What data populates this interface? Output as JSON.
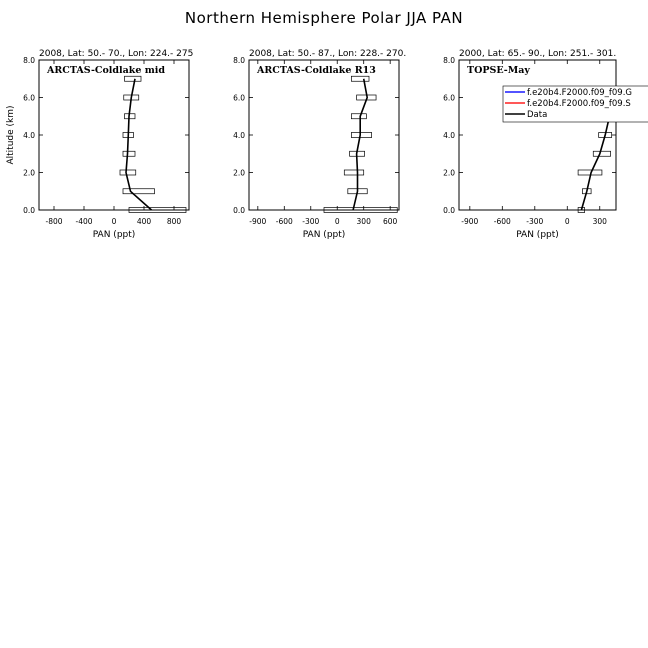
{
  "title": "Northern Hemisphere Polar JJA PAN",
  "chart_data": [
    {
      "type": "line",
      "header": "2008, Lat:  50.- 70., Lon: 224.- 275",
      "inner_label": "ARCTAS-Coldlake mid",
      "xlabel": "PAN (ppt)",
      "ylabel": "Altitude (km)",
      "xlim": [
        -1000,
        1000
      ],
      "ylim": [
        0,
        8
      ],
      "xticks": [
        "-800",
        "-400",
        "0",
        "400",
        "800"
      ],
      "xtick_values": [
        -800,
        -400,
        0,
        400,
        800
      ],
      "yticks": [
        "0.0",
        "2.0",
        "4.0",
        "6.0",
        "8.0"
      ],
      "ytick_values": [
        0,
        2,
        4,
        6,
        8
      ],
      "series": [
        {
          "values_alt": [
            0,
            1,
            2,
            3,
            4,
            5,
            6,
            7
          ],
          "values_pan": [
            500,
            220,
            160,
            180,
            190,
            200,
            230,
            280
          ],
          "pan_range_low": [
            200,
            120,
            80,
            120,
            120,
            140,
            130,
            140
          ],
          "pan_range_high": [
            960,
            540,
            290,
            280,
            260,
            280,
            330,
            360
          ]
        }
      ]
    },
    {
      "type": "line",
      "header": "2008, Lat:  50.- 87., Lon: 228.- 270.",
      "inner_label": "ARCTAS-Coldlake R13",
      "xlabel": "PAN (ppt)",
      "ylabel": "",
      "xlim": [
        -1000,
        700
      ],
      "ylim": [
        0,
        8
      ],
      "xticks": [
        "-900",
        "-600",
        "-300",
        "0",
        "300",
        "600"
      ],
      "xtick_values": [
        -900,
        -600,
        -300,
        0,
        300,
        600
      ],
      "yticks": [
        "0.0",
        "2.0",
        "4.0",
        "6.0",
        "8.0"
      ],
      "ytick_values": [
        0,
        2,
        4,
        6,
        8
      ],
      "series": [
        {
          "values_alt": [
            0,
            1,
            2,
            3,
            4,
            5,
            6,
            7
          ],
          "values_pan": [
            180,
            230,
            230,
            220,
            260,
            260,
            340,
            300
          ],
          "pan_range_low": [
            -150,
            120,
            80,
            140,
            160,
            160,
            220,
            160
          ],
          "pan_range_high": [
            680,
            340,
            300,
            310,
            390,
            330,
            440,
            360
          ]
        }
      ]
    },
    {
      "type": "line",
      "header": "2000, Lat: 65.- 90., Lon: 251.- 301.",
      "inner_label": "TOPSE-May",
      "xlabel": "PAN (ppt)",
      "ylabel": "",
      "xlim": [
        -1000,
        450
      ],
      "ylim": [
        0,
        8
      ],
      "xticks": [
        "-900",
        "-600",
        "-300",
        "0",
        "300"
      ],
      "xtick_values": [
        -900,
        -600,
        -300,
        0,
        300
      ],
      "yticks": [
        "0.0",
        "2.0",
        "4.0",
        "6.0",
        "8.0"
      ],
      "ytick_values": [
        0,
        2,
        4,
        6,
        8
      ],
      "legend": [
        {
          "label": "f.e20b4.F2000.f09_f09.G",
          "color": "#1a1aff"
        },
        {
          "label": "f.e20b4.F2000.f09_f09.S",
          "color": "#ff2020"
        },
        {
          "label": "Data",
          "color": "#000000"
        }
      ],
      "series": [
        {
          "values_alt": [
            0,
            1,
            2,
            3,
            4,
            5,
            6
          ],
          "values_pan": [
            130,
            180,
            220,
            300,
            350,
            390,
            380
          ],
          "pan_range_low": [
            100,
            140,
            100,
            240,
            290,
            360,
            320
          ],
          "pan_range_high": [
            160,
            220,
            320,
            400,
            410,
            430,
            440
          ]
        }
      ]
    }
  ]
}
